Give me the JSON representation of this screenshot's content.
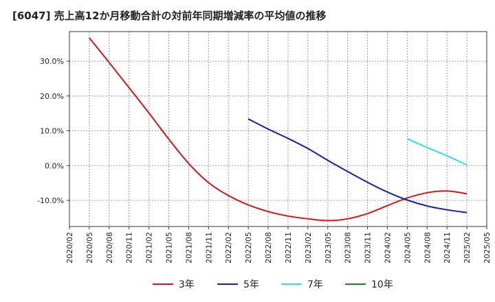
{
  "chart_data": {
    "type": "line",
    "title": "[6047]  売上高12か月移動合計の対前年同期増減率の平均値の推移",
    "xlabel": "",
    "ylabel": "",
    "x_ticks": [
      "2020/02",
      "2020/05",
      "2020/08",
      "2020/11",
      "2021/02",
      "2021/05",
      "2021/08",
      "2021/11",
      "2022/02",
      "2022/05",
      "2022/08",
      "2022/11",
      "2023/02",
      "2023/05",
      "2023/08",
      "2023/11",
      "2024/02",
      "2024/05",
      "2024/08",
      "2024/11",
      "2025/02",
      "2025/05"
    ],
    "y_ticks": [
      "30.0%",
      "20.0%",
      "10.0%",
      "0.0%",
      "-10.0%"
    ],
    "y_tick_values": [
      30,
      20,
      10,
      0,
      -10
    ],
    "ylim": [
      -17.5,
      38.5
    ],
    "grid": true,
    "legend_position": "bottom",
    "series": [
      {
        "name": "3年",
        "color": "#dd1111",
        "points": [
          [
            "2020/05",
            36.7
          ],
          [
            "2020/08",
            29.6
          ],
          [
            "2020/11",
            22.4
          ],
          [
            "2021/02",
            15.1
          ],
          [
            "2021/05",
            7.6
          ],
          [
            "2021/08",
            0.6
          ],
          [
            "2021/11",
            -4.9
          ],
          [
            "2022/02",
            -8.6
          ],
          [
            "2022/05",
            -11.3
          ],
          [
            "2022/08",
            -13.2
          ],
          [
            "2022/11",
            -14.5
          ],
          [
            "2023/02",
            -15.3
          ],
          [
            "2023/05",
            -15.8
          ],
          [
            "2023/08",
            -15.3
          ],
          [
            "2023/11",
            -13.8
          ],
          [
            "2024/02",
            -11.5
          ],
          [
            "2024/05",
            -9.3
          ],
          [
            "2024/08",
            -7.8
          ],
          [
            "2024/11",
            -7.3
          ],
          [
            "2025/02",
            -8.1
          ]
        ]
      },
      {
        "name": "5年",
        "color": "#1020b0",
        "points": [
          [
            "2022/05",
            13.4
          ],
          [
            "2022/08",
            10.5
          ],
          [
            "2022/11",
            7.8
          ],
          [
            "2023/02",
            4.9
          ],
          [
            "2023/05",
            1.5
          ],
          [
            "2023/08",
            -1.7
          ],
          [
            "2023/11",
            -4.8
          ],
          [
            "2024/02",
            -7.6
          ],
          [
            "2024/05",
            -9.9
          ],
          [
            "2024/08",
            -11.6
          ],
          [
            "2024/11",
            -12.7
          ],
          [
            "2025/02",
            -13.5
          ]
        ]
      },
      {
        "name": "7年",
        "color": "#22e5ee",
        "points": [
          [
            "2024/05",
            7.7
          ],
          [
            "2024/08",
            5.2
          ],
          [
            "2024/11",
            2.8
          ],
          [
            "2025/02",
            0.2
          ]
        ]
      },
      {
        "name": "10年",
        "color": "#118811",
        "points": []
      }
    ]
  }
}
